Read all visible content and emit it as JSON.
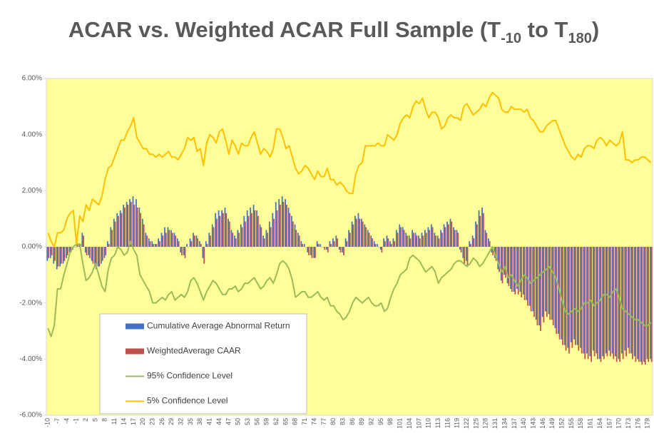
{
  "chart_data": {
    "type": "combo",
    "title": [
      "ACAR vs. Weighted ACAR Full Sample (T",
      "-10",
      " to T",
      "180",
      ")"
    ],
    "ylim": [
      -6,
      6
    ],
    "yticks": [
      {
        "value": -6,
        "label": "-6.00%"
      },
      {
        "value": -4,
        "label": "-4.00%"
      },
      {
        "value": -2,
        "label": "-2.00%"
      },
      {
        "value": 0,
        "label": "0.00%"
      },
      {
        "value": 2,
        "label": "2.00%"
      },
      {
        "value": 4,
        "label": "4.00%"
      },
      {
        "value": 6,
        "label": "6.00%"
      }
    ],
    "grid": false,
    "legend": "lower-left",
    "background": "#ffff99",
    "categories": [
      -10,
      null,
      null,
      -7,
      null,
      null,
      -4,
      null,
      null,
      -1,
      null,
      null,
      2,
      null,
      null,
      5,
      null,
      null,
      8,
      null,
      null,
      11,
      null,
      null,
      14,
      null,
      null,
      17,
      null,
      null,
      20,
      null,
      null,
      23,
      null,
      null,
      26,
      null,
      null,
      29,
      null,
      null,
      32,
      null,
      null,
      35,
      null,
      null,
      38,
      null,
      null,
      41,
      null,
      null,
      44,
      null,
      null,
      47,
      null,
      null,
      50,
      null,
      null,
      53,
      null,
      null,
      56,
      null,
      null,
      59,
      null,
      null,
      62,
      null,
      null,
      65,
      null,
      null,
      68,
      null,
      null,
      71,
      null,
      null,
      74,
      null,
      null,
      77,
      null,
      null,
      80,
      null,
      null,
      83,
      null,
      null,
      86,
      null,
      null,
      89,
      null,
      null,
      92,
      null,
      null,
      95,
      null,
      null,
      98,
      null,
      null,
      101,
      null,
      null,
      104,
      null,
      null,
      107,
      null,
      null,
      110,
      null,
      null,
      113,
      null,
      null,
      116,
      null,
      null,
      119,
      null,
      null,
      122,
      null,
      null,
      125,
      null,
      null,
      128,
      null,
      null,
      131,
      null,
      null,
      134,
      null,
      null,
      137,
      null,
      null,
      140,
      null,
      null,
      143,
      null,
      null,
      146,
      null,
      null,
      149,
      null,
      null,
      152,
      null,
      null,
      155,
      null,
      null,
      158,
      null,
      null,
      161,
      null,
      null,
      164,
      null,
      null,
      167,
      null,
      null,
      170,
      null,
      null,
      173,
      null,
      null,
      176,
      null,
      null,
      179,
      null
    ],
    "series": [
      {
        "name": "Cumulative Average Abnormal Return",
        "type": "bar",
        "color": "#4472c4",
        "values": [
          -0.5,
          -0.4,
          -0.6,
          -0.8,
          -0.7,
          -0.6,
          -0.4,
          -0.2,
          -0.1,
          0.0,
          0.1,
          0.5,
          -0.2,
          -0.3,
          -0.5,
          -0.7,
          -0.7,
          -0.6,
          -0.4,
          0.2,
          0.7,
          1.0,
          1.2,
          1.3,
          1.5,
          1.6,
          1.7,
          1.8,
          1.7,
          1.4,
          1.0,
          0.5,
          0.3,
          0.2,
          0.1,
          0.3,
          0.5,
          0.7,
          0.7,
          0.6,
          0.5,
          0.3,
          -0.2,
          -0.3,
          0.1,
          0.3,
          0.5,
          0.4,
          0.2,
          -0.4,
          0.2,
          0.5,
          0.8,
          1.2,
          1.3,
          1.3,
          1.4,
          1.0,
          0.6,
          0.4,
          0.6,
          0.8,
          1.1,
          1.3,
          1.4,
          1.5,
          1.3,
          0.8,
          0.4,
          0.6,
          0.9,
          1.2,
          1.6,
          1.7,
          1.8,
          1.7,
          1.4,
          1.1,
          0.8,
          0.5,
          0.2,
          0.1,
          -0.2,
          -0.3,
          -0.4,
          0.2,
          0.1,
          0.0,
          -0.1,
          0.2,
          0.3,
          0.4,
          -0.1,
          -0.2,
          0.3,
          0.6,
          0.9,
          1.1,
          1.2,
          1.0,
          0.8,
          0.6,
          0.4,
          0.2,
          0.1,
          -0.1,
          0.3,
          0.4,
          0.2,
          0.3,
          0.6,
          0.8,
          0.7,
          0.5,
          0.4,
          0.6,
          0.5,
          0.4,
          0.5,
          0.6,
          0.7,
          0.8,
          0.5,
          0.4,
          0.6,
          0.8,
          0.9,
          1.0,
          0.7,
          0.6,
          -0.1,
          -0.4,
          -0.5,
          0.2,
          0.4,
          0.9,
          1.3,
          1.4,
          0.6,
          0.3,
          -0.2,
          -0.4,
          -0.8,
          -1.2,
          -1.0,
          -1.3,
          -1.5,
          -1.6,
          -1.5,
          -1.6,
          -1.7,
          -1.9,
          -2.1,
          -2.3,
          -2.6,
          -2.8,
          -2.5,
          -2.3,
          -2.4,
          -2.6,
          -2.9,
          -3.1,
          -3.3,
          -3.5,
          -3.6,
          -3.4,
          -3.3,
          -3.5,
          -3.6,
          -3.8,
          -3.8,
          -3.9,
          -3.7,
          -3.8,
          -4.0,
          -3.9,
          -3.8,
          -3.7,
          -3.8,
          -3.9,
          -4.0,
          -3.8,
          -3.7,
          -3.6,
          -3.8,
          -3.9,
          -4.0,
          -4.1,
          -4.1,
          -4.0,
          -4.0
        ]
      },
      {
        "name": "WeightedAverage CAAR",
        "type": "bar",
        "color": "#c0504d",
        "values": [
          -0.4,
          -0.3,
          -0.5,
          -0.7,
          -0.6,
          -0.5,
          -0.3,
          -0.2,
          0.0,
          0.1,
          0.1,
          0.4,
          -0.3,
          -0.4,
          -0.6,
          -0.8,
          -0.7,
          -0.5,
          -0.3,
          0.1,
          0.6,
          0.9,
          1.1,
          1.2,
          1.4,
          1.5,
          1.6,
          1.5,
          1.4,
          1.2,
          0.8,
          0.4,
          0.2,
          0.1,
          0.1,
          0.2,
          0.4,
          0.5,
          0.6,
          0.5,
          0.4,
          0.2,
          -0.3,
          -0.4,
          0.0,
          0.2,
          0.4,
          0.3,
          0.1,
          -0.6,
          0.1,
          0.4,
          0.7,
          1.0,
          1.1,
          1.2,
          1.2,
          0.9,
          0.5,
          0.3,
          0.5,
          0.7,
          0.9,
          1.1,
          1.2,
          1.3,
          1.1,
          0.7,
          0.3,
          0.5,
          0.7,
          1.0,
          1.3,
          1.5,
          1.6,
          1.5,
          1.2,
          0.9,
          0.6,
          0.4,
          0.1,
          0.0,
          -0.3,
          -0.4,
          -0.4,
          0.1,
          0.0,
          -0.1,
          -0.2,
          0.1,
          0.2,
          0.3,
          -0.2,
          -0.3,
          0.2,
          0.5,
          0.8,
          1.0,
          1.0,
          0.9,
          0.7,
          0.5,
          0.3,
          0.1,
          0.0,
          -0.2,
          0.2,
          0.3,
          0.1,
          0.2,
          0.5,
          0.7,
          0.6,
          0.4,
          0.3,
          0.5,
          0.4,
          0.3,
          0.4,
          0.5,
          0.6,
          0.7,
          0.4,
          0.3,
          0.5,
          0.7,
          0.8,
          0.9,
          0.6,
          0.5,
          -0.2,
          -0.6,
          -0.7,
          0.1,
          0.3,
          0.8,
          1.1,
          1.2,
          0.5,
          0.2,
          -0.3,
          -0.5,
          -0.9,
          -1.3,
          -1.1,
          -1.4,
          -1.6,
          -1.7,
          -1.7,
          -1.8,
          -1.9,
          -2.1,
          -2.3,
          -2.5,
          -2.8,
          -3.0,
          -2.7,
          -2.5,
          -2.6,
          -2.8,
          -3.1,
          -3.3,
          -3.5,
          -3.7,
          -3.8,
          -3.6,
          -3.5,
          -3.7,
          -3.8,
          -4.0,
          -4.0,
          -4.1,
          -3.9,
          -4.0,
          -4.1,
          -4.0,
          -3.9,
          -3.9,
          -4.0,
          -4.1,
          -4.1,
          -4.0,
          -3.9,
          -3.8,
          -4.0,
          -4.1,
          -4.1,
          -4.2,
          -4.2,
          -4.1,
          -4.1
        ]
      },
      {
        "name": "95% Confidence Level",
        "type": "line",
        "color": "#9bbb59",
        "values": [
          -2.9,
          -3.2,
          -2.8,
          -1.5,
          -1.5,
          -1.0,
          -0.6,
          -0.2,
          0.0,
          0.1,
          0.1,
          -0.6,
          -1.2,
          -1.1,
          -0.9,
          -0.6,
          -1.0,
          -1.4,
          -1.6,
          -0.8,
          -0.4,
          -0.3,
          0.0,
          -0.1,
          -0.3,
          -0.2,
          0.2,
          -0.1,
          -0.3,
          -1.0,
          -1.2,
          -1.4,
          -1.6,
          -2.0,
          -2.0,
          -1.9,
          -1.8,
          -1.9,
          -1.7,
          -1.6,
          -1.9,
          -1.8,
          -1.7,
          -1.8,
          -1.6,
          -1.2,
          -1.1,
          -1.3,
          -1.6,
          -1.9,
          -1.6,
          -1.4,
          -1.2,
          -1.3,
          -1.5,
          -1.7,
          -1.7,
          -1.5,
          -1.5,
          -1.4,
          -1.6,
          -1.5,
          -1.3,
          -1.3,
          -1.2,
          -1.1,
          -1.3,
          -1.5,
          -1.4,
          -1.2,
          -1.1,
          -1.3,
          -1.0,
          -0.6,
          -0.5,
          -0.6,
          -0.8,
          -1.2,
          -1.8,
          -1.7,
          -1.6,
          -1.6,
          -1.8,
          -1.8,
          -1.7,
          -1.6,
          -1.8,
          -1.9,
          -1.8,
          -2.1,
          -2.1,
          -2.3,
          -2.4,
          -2.6,
          -2.5,
          -2.3,
          -2.0,
          -1.8,
          -1.9,
          -2.0,
          -1.9,
          -1.8,
          -2.0,
          -2.1,
          -2.1,
          -2.0,
          -2.3,
          -2.2,
          -1.8,
          -1.5,
          -1.3,
          -1.0,
          -0.9,
          -0.8,
          -0.4,
          -0.3,
          -0.4,
          -0.5,
          -0.7,
          -0.9,
          -0.8,
          -0.7,
          -0.9,
          -1.3,
          -1.1,
          -1.0,
          -0.9,
          -0.8,
          -0.6,
          -0.5,
          -0.5,
          -0.6,
          -0.7,
          -0.6,
          -0.4,
          -0.5,
          -0.7,
          -0.6,
          -0.4,
          -0.2,
          0.0,
          -0.3,
          -0.6,
          -0.9,
          -0.7,
          -1.1,
          -1.0,
          -1.2,
          -1.4,
          -1.2,
          -1.0,
          -1.1,
          -1.3,
          -1.2,
          -1.1,
          -1.0,
          -0.9,
          -0.8,
          -0.7,
          -0.9,
          -1.1,
          -1.5,
          -1.9,
          -2.3,
          -2.4,
          -2.3,
          -2.2,
          -2.3,
          -2.2,
          -2.0,
          -2.0,
          -1.9,
          -2.1,
          -2.0,
          -1.9,
          -1.7,
          -1.7,
          -1.8,
          -1.6,
          -1.5,
          -1.8,
          -2.2,
          -2.3,
          -2.4,
          -2.5,
          -2.6,
          -2.6,
          -2.7,
          -2.8,
          -2.8,
          -2.7
        ]
      },
      {
        "name": "5% Confidence Level",
        "type": "line",
        "color": "#ffc000",
        "values": [
          0.5,
          0.2,
          0.0,
          0.5,
          0.5,
          0.6,
          1.0,
          1.2,
          1.3,
          0.1,
          1.1,
          0.9,
          1.5,
          1.3,
          1.7,
          1.6,
          1.5,
          1.8,
          2.4,
          2.8,
          2.9,
          3.2,
          3.5,
          3.8,
          3.8,
          4.1,
          4.3,
          4.6,
          3.9,
          3.7,
          3.5,
          3.5,
          3.3,
          3.3,
          3.2,
          3.3,
          3.2,
          3.3,
          3.4,
          3.2,
          3.2,
          3.1,
          3.3,
          3.5,
          3.9,
          3.8,
          3.9,
          3.4,
          3.5,
          2.9,
          3.7,
          4.0,
          3.9,
          3.7,
          4.1,
          4.2,
          3.8,
          3.3,
          3.8,
          3.6,
          3.3,
          3.7,
          3.6,
          3.6,
          3.9,
          4.1,
          3.7,
          3.3,
          3.5,
          3.4,
          3.2,
          3.5,
          4.2,
          4.2,
          3.9,
          3.5,
          3.6,
          3.2,
          2.8,
          2.6,
          2.7,
          2.9,
          2.8,
          2.6,
          2.4,
          2.7,
          2.5,
          2.5,
          2.8,
          2.4,
          2.4,
          2.2,
          2.3,
          2.2,
          2.0,
          1.9,
          1.9,
          2.6,
          2.9,
          3.0,
          3.6,
          3.6,
          3.6,
          3.6,
          3.7,
          3.6,
          3.6,
          4.0,
          3.9,
          3.8,
          4.0,
          4.4,
          4.6,
          4.7,
          4.6,
          5.0,
          5.2,
          5.1,
          5.3,
          4.9,
          4.6,
          4.8,
          4.8,
          4.6,
          4.2,
          4.3,
          4.6,
          4.7,
          4.6,
          4.6,
          4.5,
          5.0,
          5.1,
          4.9,
          4.7,
          4.8,
          4.9,
          5.1,
          5.0,
          5.3,
          5.5,
          5.4,
          5.3,
          4.9,
          4.8,
          4.8,
          5.0,
          4.9,
          4.9,
          4.9,
          4.8,
          4.9,
          4.6,
          4.5,
          4.3,
          4.1,
          4.1,
          4.3,
          4.4,
          4.5,
          4.5,
          4.2,
          3.9,
          3.6,
          3.4,
          3.2,
          3.1,
          3.3,
          3.2,
          3.5,
          3.6,
          3.6,
          3.5,
          3.8,
          3.9,
          3.8,
          3.6,
          3.8,
          3.7,
          3.6,
          3.7,
          4.1,
          3.1,
          3.1,
          3.0,
          3.1,
          3.1,
          3.2,
          3.2,
          3.1,
          3.0
        ]
      }
    ]
  }
}
